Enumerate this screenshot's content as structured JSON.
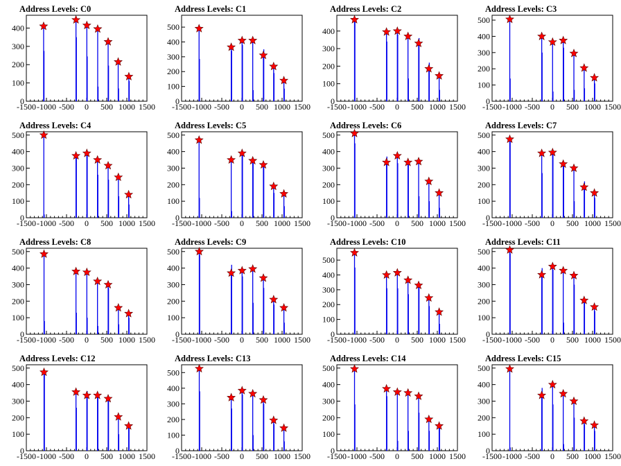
{
  "chart_data": [
    {
      "type": "bar",
      "title": "Address Levels: C0",
      "xlim": [
        -1500,
        1500
      ],
      "ylim": [
        0,
        470
      ],
      "yticks": [
        0,
        100,
        200,
        300,
        400
      ],
      "xticks": [
        "-1500",
        "-1000",
        "-500",
        "0",
        "500",
        "1000",
        "1500"
      ],
      "x": [
        -1070,
        -265,
        5,
        275,
        535,
        785,
        1050
      ],
      "values": [
        410,
        445,
        415,
        395,
        325,
        215,
        135
      ],
      "minor_bars": [
        [
          -1060,
          275
        ],
        [
          -255,
          350
        ],
        [
          15,
          245
        ],
        [
          285,
          80
        ],
        [
          545,
          195
        ],
        [
          795,
          70
        ],
        [
          1060,
          110
        ]
      ]
    },
    {
      "type": "bar",
      "title": "Address Levels: C1",
      "xlim": [
        -1500,
        1500
      ],
      "ylim": [
        0,
        580
      ],
      "yticks": [
        0,
        100,
        200,
        300,
        400,
        500
      ],
      "xticks": [
        "-1500",
        "-1000",
        "-500",
        "0",
        "500",
        "1000",
        "1500"
      ],
      "x": [
        -1065,
        -265,
        5,
        270,
        535,
        790,
        1045
      ],
      "values": [
        490,
        365,
        410,
        410,
        310,
        235,
        140
      ],
      "minor_bars": [
        [
          -1055,
          285
        ],
        [
          -255,
          340
        ],
        [
          15,
          380
        ],
        [
          280,
          75
        ],
        [
          545,
          350
        ],
        [
          800,
          190
        ],
        [
          1055,
          85
        ]
      ]
    },
    {
      "type": "bar",
      "title": "Address Levels: C2",
      "xlim": [
        -1500,
        1500
      ],
      "ylim": [
        0,
        490
      ],
      "yticks": [
        0,
        100,
        200,
        300,
        400
      ],
      "xticks": [
        "-1500",
        "-1000",
        "-500",
        "0",
        "500",
        "1000",
        "1500"
      ],
      "x": [
        -1060,
        -265,
        5,
        270,
        535,
        790,
        1045
      ],
      "values": [
        465,
        395,
        400,
        370,
        330,
        185,
        145
      ],
      "minor_bars": [
        [
          -1050,
          460
        ],
        [
          -255,
          340
        ],
        [
          15,
          380
        ],
        [
          280,
          130
        ],
        [
          545,
          360
        ],
        [
          800,
          220
        ],
        [
          1055,
          65
        ]
      ]
    },
    {
      "type": "bar",
      "title": "Address Levels: C3",
      "xlim": [
        -1500,
        1500
      ],
      "ylim": [
        0,
        530
      ],
      "yticks": [
        0,
        100,
        200,
        300,
        400,
        500
      ],
      "xticks": [
        "-1500",
        "-1000",
        "-500",
        "0",
        "500",
        "1000",
        "1500"
      ],
      "x": [
        -1060,
        -265,
        5,
        270,
        535,
        790,
        1045
      ],
      "values": [
        505,
        400,
        365,
        375,
        295,
        205,
        145
      ],
      "minor_bars": [
        [
          -1050,
          140
        ],
        [
          -255,
          300
        ],
        [
          15,
          60
        ],
        [
          280,
          330
        ],
        [
          545,
          70
        ],
        [
          800,
          80
        ],
        [
          1055,
          110
        ]
      ]
    },
    {
      "type": "bar",
      "title": "Address Levels: C4",
      "xlim": [
        -1500,
        1500
      ],
      "ylim": [
        0,
        520
      ],
      "yticks": [
        0,
        100,
        200,
        300,
        400,
        500
      ],
      "xticks": [
        "-1500",
        "-1000",
        "-500",
        "0",
        "500",
        "1000",
        "1500"
      ],
      "x": [
        -1065,
        -265,
        5,
        270,
        535,
        790,
        1045
      ],
      "values": [
        500,
        375,
        390,
        350,
        315,
        245,
        140
      ],
      "minor_bars": [
        [
          -1055,
          20
        ],
        [
          -255,
          365
        ],
        [
          15,
          395
        ],
        [
          280,
          260
        ],
        [
          545,
          230
        ],
        [
          800,
          130
        ],
        [
          1055,
          80
        ]
      ]
    },
    {
      "type": "bar",
      "title": "Address Levels: C5",
      "xlim": [
        -1500,
        1500
      ],
      "ylim": [
        0,
        520
      ],
      "yticks": [
        0,
        100,
        200,
        300,
        400,
        500
      ],
      "xticks": [
        "-1500",
        "-1000",
        "-500",
        "0",
        "500",
        "1000",
        "1500"
      ],
      "x": [
        -1065,
        -265,
        5,
        270,
        535,
        790,
        1045
      ],
      "values": [
        470,
        350,
        390,
        345,
        320,
        190,
        145
      ],
      "minor_bars": [
        [
          -1055,
          120
        ],
        [
          -255,
          40
        ],
        [
          15,
          380
        ],
        [
          280,
          330
        ],
        [
          545,
          310
        ],
        [
          800,
          150
        ],
        [
          1055,
          70
        ]
      ]
    },
    {
      "type": "bar",
      "title": "Address Levels: C6",
      "xlim": [
        -1500,
        1500
      ],
      "ylim": [
        0,
        520
      ],
      "yticks": [
        0,
        100,
        200,
        300,
        400,
        500
      ],
      "xticks": [
        "-1500",
        "-1000",
        "-500",
        "0",
        "500",
        "1000",
        "1500"
      ],
      "x": [
        -1060,
        -265,
        5,
        270,
        535,
        790,
        1045
      ],
      "values": [
        510,
        335,
        375,
        335,
        340,
        220,
        150
      ],
      "minor_bars": [
        [
          -1050,
          450
        ],
        [
          -255,
          370
        ],
        [
          15,
          330
        ],
        [
          280,
          320
        ],
        [
          545,
          130
        ],
        [
          800,
          100
        ],
        [
          1055,
          60
        ]
      ]
    },
    {
      "type": "bar",
      "title": "Address Levels: C7",
      "xlim": [
        -1500,
        1500
      ],
      "ylim": [
        0,
        520
      ],
      "yticks": [
        0,
        100,
        200,
        300,
        400,
        500
      ],
      "xticks": [
        "-1500",
        "-1000",
        "-500",
        "0",
        "500",
        "1000",
        "1500"
      ],
      "x": [
        -1060,
        -265,
        5,
        270,
        535,
        790,
        1045
      ],
      "values": [
        475,
        390,
        395,
        325,
        300,
        185,
        150
      ],
      "minor_bars": [
        [
          -1050,
          460
        ],
        [
          -255,
          270
        ],
        [
          15,
          380
        ],
        [
          280,
          340
        ],
        [
          545,
          100
        ],
        [
          800,
          220
        ],
        [
          1055,
          120
        ]
      ]
    },
    {
      "type": "bar",
      "title": "Address Levels: C8",
      "xlim": [
        -1500,
        1500
      ],
      "ylim": [
        0,
        520
      ],
      "yticks": [
        0,
        100,
        200,
        300,
        400,
        500
      ],
      "xticks": [
        "-1500",
        "-1000",
        "-500",
        "0",
        "500",
        "1000",
        "1500"
      ],
      "x": [
        -1060,
        -265,
        5,
        270,
        535,
        790,
        1045
      ],
      "values": [
        485,
        380,
        375,
        320,
        300,
        160,
        125
      ],
      "minor_bars": [
        [
          -1050,
          80
        ],
        [
          -255,
          130
        ],
        [
          15,
          100
        ],
        [
          280,
          50
        ],
        [
          545,
          280
        ],
        [
          800,
          60
        ],
        [
          1055,
          100
        ]
      ]
    },
    {
      "type": "bar",
      "title": "Address Levels: C9",
      "xlim": [
        -1500,
        1500
      ],
      "ylim": [
        0,
        520
      ],
      "yticks": [
        0,
        100,
        200,
        300,
        400,
        500
      ],
      "xticks": [
        "-1500",
        "-1000",
        "-500",
        "0",
        "500",
        "1000",
        "1500"
      ],
      "x": [
        -1060,
        -265,
        5,
        270,
        535,
        790,
        1045
      ],
      "values": [
        500,
        370,
        385,
        395,
        340,
        210,
        160
      ],
      "minor_bars": [
        [
          -1050,
          480
        ],
        [
          -255,
          420
        ],
        [
          15,
          350
        ],
        [
          280,
          190
        ],
        [
          545,
          280
        ],
        [
          800,
          180
        ],
        [
          1055,
          70
        ]
      ]
    },
    {
      "type": "bar",
      "title": "Address Levels: C10",
      "xlim": [
        -1500,
        1500
      ],
      "ylim": [
        0,
        580
      ],
      "yticks": [
        0,
        100,
        200,
        300,
        400,
        500
      ],
      "xticks": [
        "-1500",
        "-1000",
        "-500",
        "0",
        "500",
        "1000",
        "1500"
      ],
      "x": [
        -1060,
        -265,
        5,
        270,
        535,
        790,
        1045
      ],
      "values": [
        550,
        400,
        415,
        365,
        330,
        245,
        150
      ],
      "minor_bars": [
        [
          -1050,
          450
        ],
        [
          -255,
          310
        ],
        [
          15,
          310
        ],
        [
          280,
          270
        ],
        [
          545,
          330
        ],
        [
          800,
          190
        ],
        [
          1055,
          70
        ]
      ]
    },
    {
      "type": "bar",
      "title": "Address Levels: C11",
      "xlim": [
        -1500,
        1500
      ],
      "ylim": [
        0,
        520
      ],
      "yticks": [
        0,
        100,
        200,
        300,
        400,
        500
      ],
      "xticks": [
        "-1500",
        "-1000",
        "-500",
        "0",
        "500",
        "1000",
        "1500"
      ],
      "x": [
        -1060,
        -265,
        5,
        270,
        535,
        790,
        1045
      ],
      "values": [
        510,
        360,
        410,
        385,
        355,
        205,
        165
      ],
      "minor_bars": [
        [
          -1050,
          490
        ],
        [
          -255,
          400
        ],
        [
          15,
          390
        ],
        [
          280,
          70
        ],
        [
          545,
          300
        ],
        [
          800,
          190
        ],
        [
          1055,
          140
        ]
      ]
    },
    {
      "type": "bar",
      "title": "Address Levels: C12",
      "xlim": [
        -1500,
        1500
      ],
      "ylim": [
        0,
        520
      ],
      "yticks": [
        0,
        100,
        200,
        300,
        400,
        500
      ],
      "xticks": [
        "-1500",
        "-1000",
        "-500",
        "0",
        "500",
        "1000",
        "1500"
      ],
      "x": [
        -1060,
        -265,
        5,
        270,
        535,
        790,
        1045
      ],
      "values": [
        475,
        355,
        335,
        335,
        315,
        205,
        150
      ],
      "minor_bars": [
        [
          -1050,
          470
        ],
        [
          -255,
          260
        ],
        [
          15,
          360
        ],
        [
          280,
          320
        ],
        [
          545,
          300
        ],
        [
          800,
          100
        ],
        [
          1055,
          140
        ]
      ]
    },
    {
      "type": "bar",
      "title": "Address Levels: C13",
      "xlim": [
        -1500,
        1500
      ],
      "ylim": [
        0,
        550
      ],
      "yticks": [
        0,
        100,
        200,
        300,
        400,
        500
      ],
      "xticks": [
        "-1500",
        "-1000",
        "-500",
        "0",
        "500",
        "1000",
        "1500"
      ],
      "x": [
        -1060,
        -265,
        5,
        270,
        535,
        790,
        1045
      ],
      "values": [
        525,
        340,
        385,
        365,
        325,
        195,
        145
      ],
      "minor_bars": [
        [
          -1050,
          380
        ],
        [
          -255,
          270
        ],
        [
          15,
          360
        ],
        [
          280,
          100
        ],
        [
          545,
          300
        ],
        [
          800,
          170
        ],
        [
          1055,
          60
        ]
      ]
    },
    {
      "type": "bar",
      "title": "Address Levels: C14",
      "xlim": [
        -1500,
        1500
      ],
      "ylim": [
        0,
        520
      ],
      "yticks": [
        0,
        100,
        200,
        300,
        400,
        500
      ],
      "xticks": [
        "-1500",
        "-1000",
        "-500",
        "0",
        "500",
        "1000",
        "1500"
      ],
      "x": [
        -1060,
        -265,
        5,
        270,
        535,
        790,
        1045
      ],
      "values": [
        495,
        375,
        355,
        350,
        330,
        190,
        150
      ],
      "minor_bars": [
        [
          -1050,
          280
        ],
        [
          -255,
          330
        ],
        [
          15,
          60
        ],
        [
          280,
          120
        ],
        [
          545,
          230
        ],
        [
          800,
          120
        ],
        [
          1055,
          150
        ]
      ]
    },
    {
      "type": "bar",
      "title": "Address Levels: C15",
      "xlim": [
        -1500,
        1500
      ],
      "ylim": [
        0,
        520
      ],
      "yticks": [
        0,
        100,
        200,
        300,
        400,
        500
      ],
      "xticks": [
        "-1500",
        "-1000",
        "-500",
        "0",
        "500",
        "1000",
        "1500"
      ],
      "x": [
        -1060,
        -265,
        5,
        270,
        535,
        790,
        1045
      ],
      "values": [
        495,
        335,
        400,
        345,
        300,
        180,
        155
      ],
      "minor_bars": [
        [
          -1050,
          20
        ],
        [
          -255,
          380
        ],
        [
          15,
          280
        ],
        [
          280,
          40
        ],
        [
          545,
          200
        ],
        [
          800,
          160
        ],
        [
          1055,
          120
        ]
      ]
    }
  ]
}
